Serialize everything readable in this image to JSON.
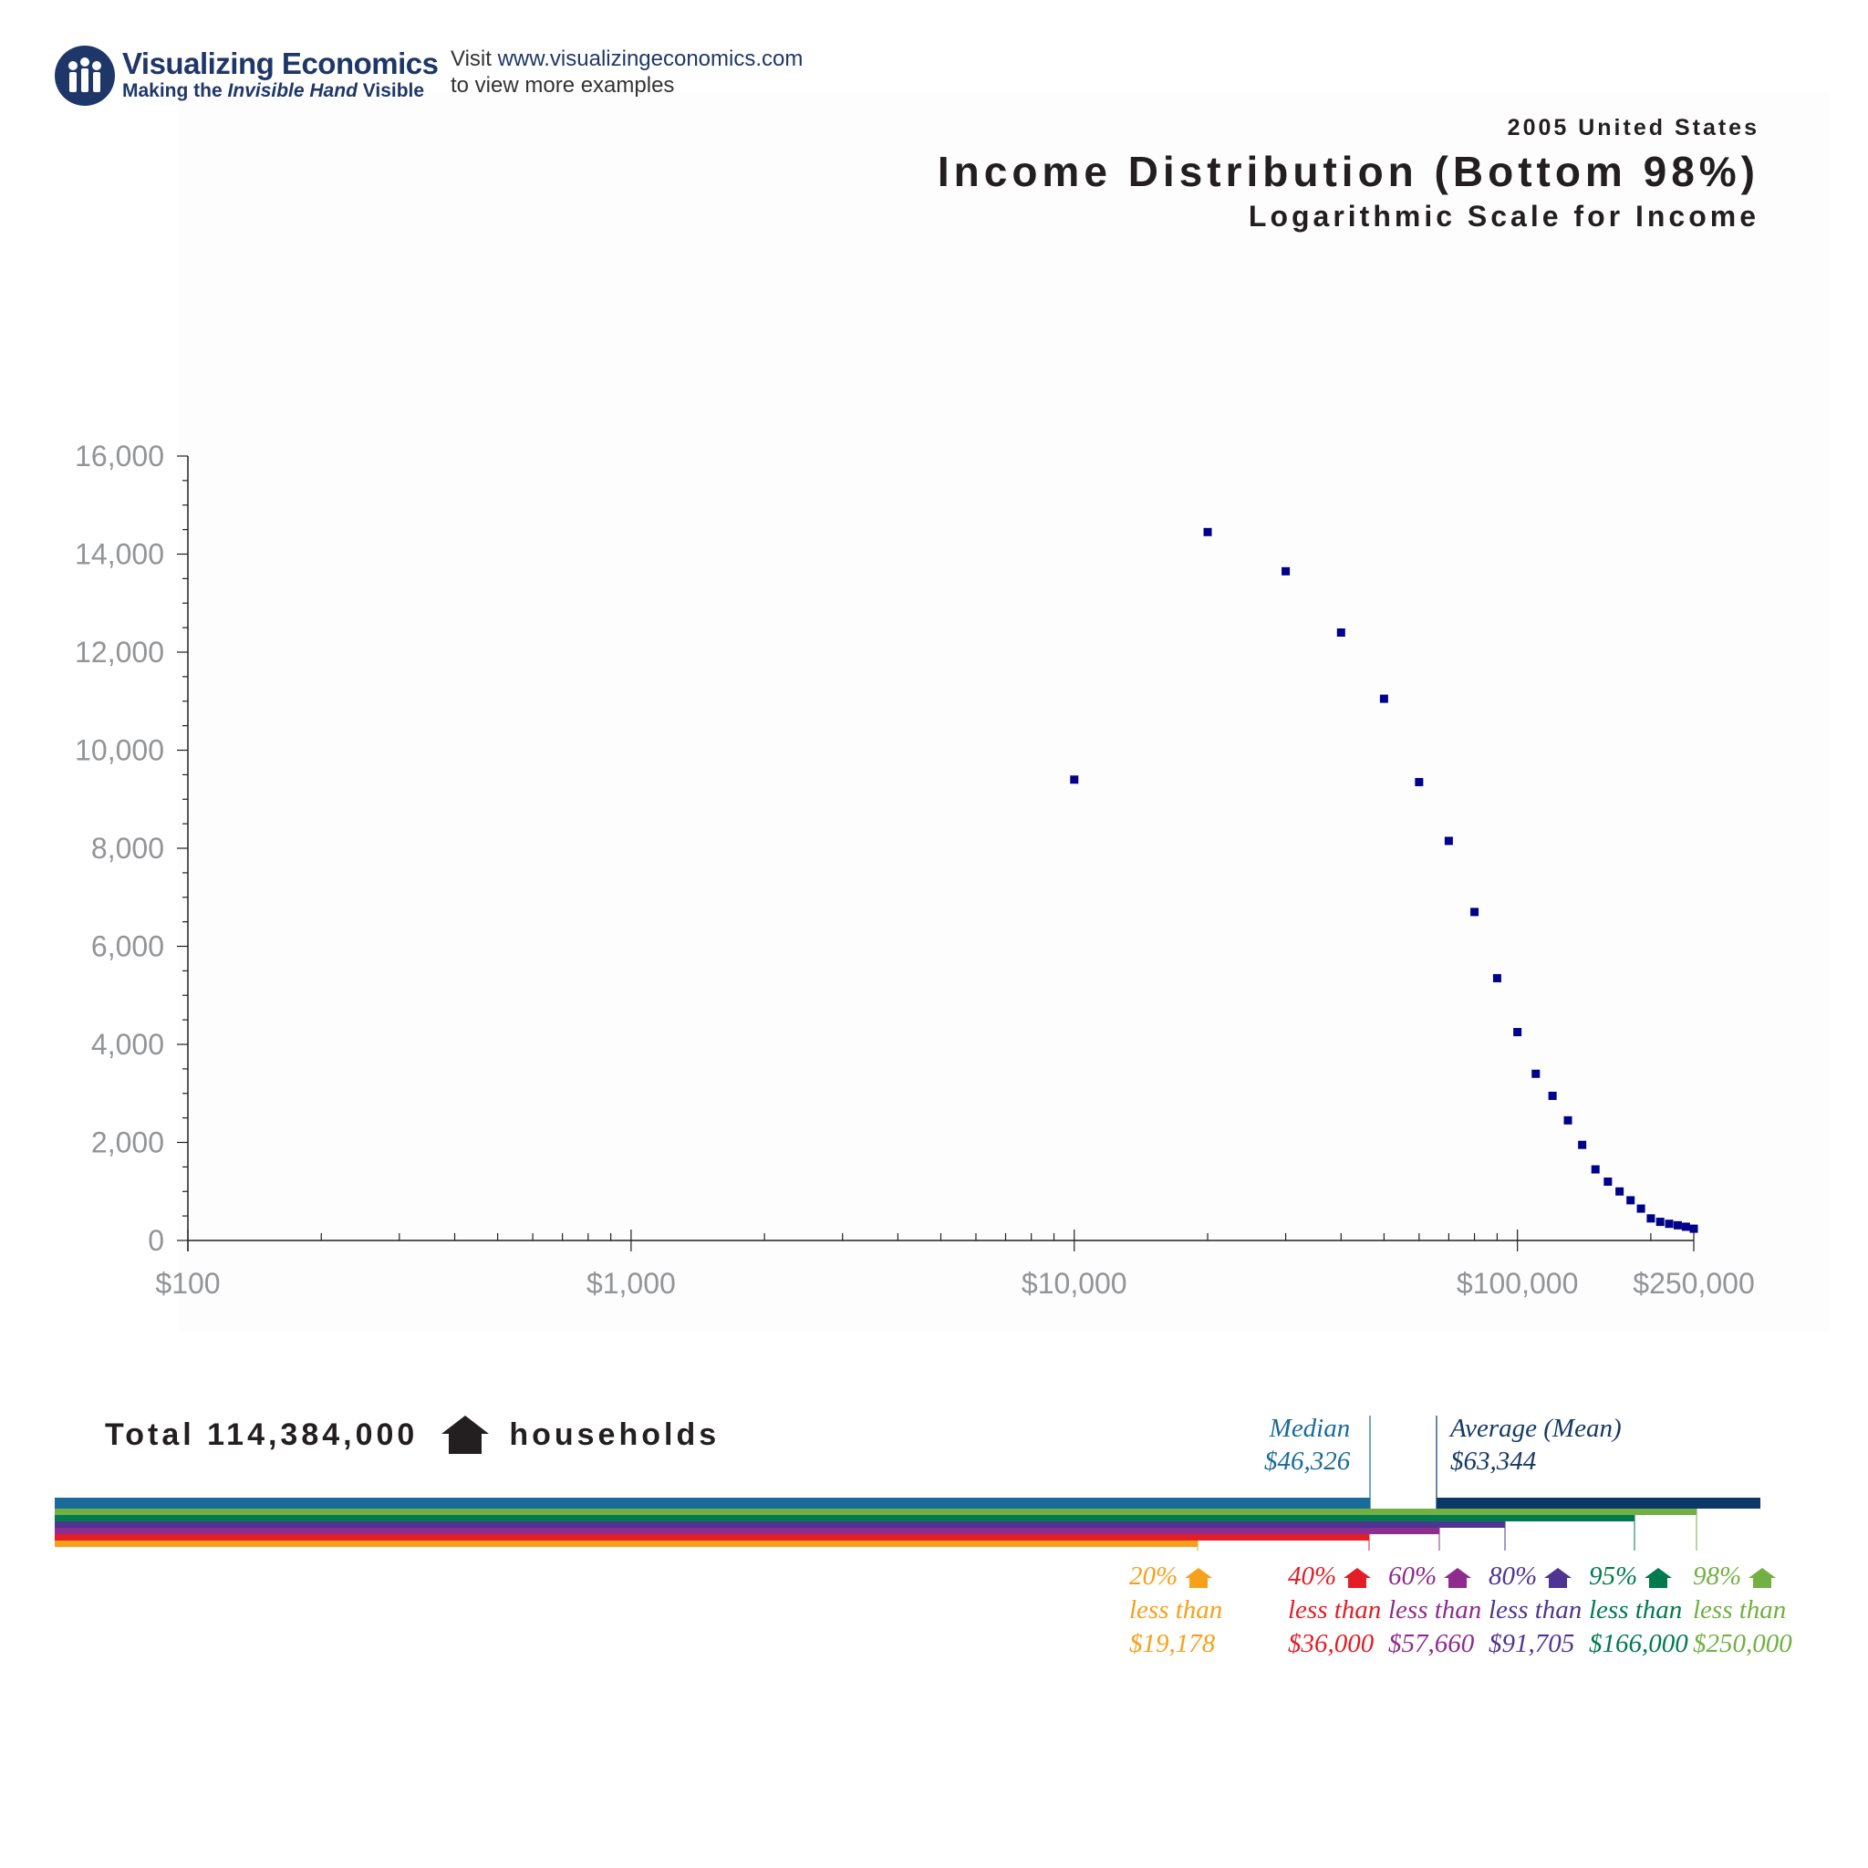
{
  "header": {
    "logo_title": "Visualizing Economics",
    "logo_sub_pre": "Making the",
    "logo_sub_italic": "Invisible Hand",
    "logo_sub_post": "Visible",
    "visit_line1_pre": "Visit",
    "visit_url": "www.visualizingeconomics.com",
    "visit_line2": "to view more examples"
  },
  "title": {
    "year": "2005 United States",
    "main": "Income Distribution (Bottom 98%)",
    "sub": "Logarithmic Scale for Income"
  },
  "chart_data": {
    "type": "scatter",
    "x_scale": "log",
    "xlim": [
      100,
      250000
    ],
    "ylim": [
      0,
      16000
    ],
    "x_tick_labels": [
      {
        "value": 100,
        "label": "$100"
      },
      {
        "value": 1000,
        "label": "$1,000"
      },
      {
        "value": 10000,
        "label": "$10,000"
      },
      {
        "value": 100000,
        "label": "$100,000"
      },
      {
        "value": 250000,
        "label": "$250,000"
      }
    ],
    "y_tick_labels": [
      {
        "value": 0,
        "label": "0"
      },
      {
        "value": 2000,
        "label": "2,000"
      },
      {
        "value": 4000,
        "label": "4,000"
      },
      {
        "value": 6000,
        "label": "6,000"
      },
      {
        "value": 8000,
        "label": "8,000"
      },
      {
        "value": 10000,
        "label": "10,000"
      },
      {
        "value": 12000,
        "label": "12,000"
      },
      {
        "value": 14000,
        "label": "14,000"
      },
      {
        "value": 16000,
        "label": "16,000"
      }
    ],
    "marker_color": "#00008b",
    "points": [
      {
        "x": 10000,
        "y": 9400
      },
      {
        "x": 20000,
        "y": 14450
      },
      {
        "x": 30000,
        "y": 13650
      },
      {
        "x": 40000,
        "y": 12400
      },
      {
        "x": 50000,
        "y": 11050
      },
      {
        "x": 60000,
        "y": 9350
      },
      {
        "x": 70000,
        "y": 8150
      },
      {
        "x": 80000,
        "y": 6700
      },
      {
        "x": 90000,
        "y": 5350
      },
      {
        "x": 100000,
        "y": 4250
      },
      {
        "x": 110000,
        "y": 3400
      },
      {
        "x": 120000,
        "y": 2950
      },
      {
        "x": 130000,
        "y": 2450
      },
      {
        "x": 140000,
        "y": 1950
      },
      {
        "x": 150000,
        "y": 1450
      },
      {
        "x": 160000,
        "y": 1200
      },
      {
        "x": 170000,
        "y": 1000
      },
      {
        "x": 180000,
        "y": 820
      },
      {
        "x": 190000,
        "y": 650
      },
      {
        "x": 200000,
        "y": 450
      },
      {
        "x": 210000,
        "y": 380
      },
      {
        "x": 220000,
        "y": 340
      },
      {
        "x": 230000,
        "y": 310
      },
      {
        "x": 240000,
        "y": 280
      },
      {
        "x": 250000,
        "y": 240
      }
    ],
    "grid": false
  },
  "households": {
    "total_label": "Total 114,384,000",
    "unit_label": "households"
  },
  "median": {
    "label": "Median",
    "value": "$46,326",
    "income": 46326,
    "color": "#1a6b9a"
  },
  "mean": {
    "label": "Average (Mean)",
    "value": "$63,344",
    "income": 63344,
    "color": "#153a62"
  },
  "percentiles": [
    {
      "pct": "20%",
      "less": "less than",
      "value": "$19,178",
      "income": 19178,
      "color": "#f7a11a"
    },
    {
      "pct": "40%",
      "less": "less than",
      "value": "$36,000",
      "income": 36000,
      "color": "#e31e26"
    },
    {
      "pct": "60%",
      "less": "less than",
      "value": "$57,660",
      "income": 57660,
      "color": "#8e2c8f"
    },
    {
      "pct": "80%",
      "less": "less than",
      "value": "$91,705",
      "income": 91705,
      "color": "#4e3591"
    },
    {
      "pct": "95%",
      "less": "less than",
      "value": "$166,000",
      "income": 166000,
      "color": "#017a4e"
    },
    {
      "pct": "98%",
      "less": "less than",
      "value": "$250,000",
      "income": 250000,
      "color": "#72b043"
    }
  ],
  "colors": {
    "axis": "#231f20",
    "tick_label": "#929497",
    "median_bar": "#1a6b9a",
    "mean_bar": "#0b3866",
    "logo": "#1f3768"
  }
}
